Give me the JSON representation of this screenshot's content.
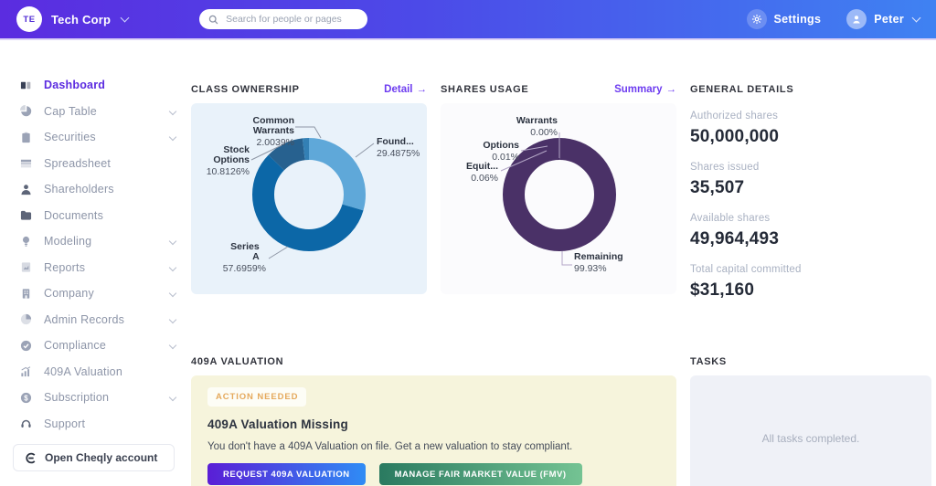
{
  "topbar": {
    "brand_initials": "TE",
    "brand_name": "Tech Corp",
    "search_placeholder": "Search for people or pages",
    "settings_label": "Settings",
    "user_name": "Peter"
  },
  "sidebar": {
    "items": [
      {
        "label": "Dashboard",
        "icon": "dashboard-icon",
        "slug": "dashboard",
        "active": true,
        "expandable": false
      },
      {
        "label": "Cap Table",
        "icon": "pie-chart-icon",
        "slug": "cap-table",
        "active": false,
        "expandable": true
      },
      {
        "label": "Securities",
        "icon": "clipboard-icon",
        "slug": "securities",
        "active": false,
        "expandable": true
      },
      {
        "label": "Spreadsheet",
        "icon": "spreadsheet-icon",
        "slug": "spreadsheet",
        "active": false,
        "expandable": false
      },
      {
        "label": "Shareholders",
        "icon": "person-icon",
        "slug": "shareholders",
        "active": false,
        "expandable": false
      },
      {
        "label": "Documents",
        "icon": "folder-icon",
        "slug": "documents",
        "active": false,
        "expandable": false
      },
      {
        "label": "Modeling",
        "icon": "lightbulb-icon",
        "slug": "modeling",
        "active": false,
        "expandable": true
      },
      {
        "label": "Reports",
        "icon": "report-icon",
        "slug": "reports",
        "active": false,
        "expandable": true
      },
      {
        "label": "Company",
        "icon": "building-icon",
        "slug": "company",
        "active": false,
        "expandable": true
      },
      {
        "label": "Admin Records",
        "icon": "records-icon",
        "slug": "admin-records",
        "active": false,
        "expandable": true
      },
      {
        "label": "Compliance",
        "icon": "check-circle-icon",
        "slug": "compliance",
        "active": false,
        "expandable": true
      },
      {
        "label": "409A Valuation",
        "icon": "valuation-chart-icon",
        "slug": "409a-valuation",
        "active": false,
        "expandable": false
      },
      {
        "label": "Subscription",
        "icon": "dollar-circle-icon",
        "slug": "subscription",
        "active": false,
        "expandable": true
      },
      {
        "label": "Support",
        "icon": "support-icon",
        "slug": "support",
        "active": false,
        "expandable": false
      }
    ],
    "cheqly_button": "Open Cheqly account"
  },
  "sections": {
    "class_ownership": {
      "title": "CLASS OWNERSHIP",
      "link": "Detail",
      "arrow": "→"
    },
    "shares_usage": {
      "title": "SHARES USAGE",
      "link": "Summary",
      "arrow": "→"
    },
    "general_details": {
      "title": "GENERAL DETAILS"
    },
    "valuation_409a": {
      "title": "409A VALUATION"
    },
    "tasks": {
      "title": "TASKS",
      "empty_text": "All tasks completed."
    }
  },
  "general_details": {
    "items": [
      {
        "label": "Authorized shares",
        "value": "50,000,000"
      },
      {
        "label": "Shares issued",
        "value": "35,507"
      },
      {
        "label": "Available shares",
        "value": "49,964,493"
      },
      {
        "label": "Total capital committed",
        "value": "$31,160"
      }
    ]
  },
  "valuation_card": {
    "badge": "ACTION NEEDED",
    "title": "409A Valuation Missing",
    "body": "You don't have a 409A Valuation on file. Get a new valuation to stay compliant.",
    "buttons": [
      {
        "label": "REQUEST 409A VALUATION"
      },
      {
        "label": "MANAGE FAIR MARKET VALUE (FMV)"
      }
    ]
  },
  "colors": {
    "topbar_gradient_left": "#5b2ce0",
    "topbar_gradient_right": "#3f82f2",
    "accent_link_purple": "#6d3cf0",
    "active_nav_purple": "#5b2be0",
    "badge_orange": "#e5a95c"
  },
  "chart_data": [
    {
      "type": "pie",
      "donut": true,
      "title": "CLASS OWNERSHIP",
      "unit": "%",
      "segments": [
        {
          "label": "Found...",
          "value": 29.4875,
          "display": "29.4875%",
          "color": "#5fa8d9"
        },
        {
          "label": "Series A",
          "value": 57.6959,
          "display": "57.6959%",
          "color": "#0c67a7"
        },
        {
          "label": "Stock Options",
          "value": 10.8126,
          "display": "10.8126%",
          "color": "#27618f"
        },
        {
          "label": "Common Warrants",
          "value": 2.0039,
          "display": "2.0039%",
          "color": "#3380b5"
        }
      ]
    },
    {
      "type": "pie",
      "donut": true,
      "title": "SHARES USAGE",
      "unit": "%",
      "segments": [
        {
          "label": "Warrants",
          "value": 0.0,
          "display": "0.00%",
          "color": "#7c5fa0"
        },
        {
          "label": "Options",
          "value": 0.01,
          "display": "0.01%",
          "color": "#8d72b0"
        },
        {
          "label": "Equit...",
          "value": 0.06,
          "display": "0.06%",
          "color": "#9d84bd"
        },
        {
          "label": "Remaining",
          "value": 99.93,
          "display": "99.93%",
          "color": "#4a3167"
        }
      ]
    }
  ]
}
